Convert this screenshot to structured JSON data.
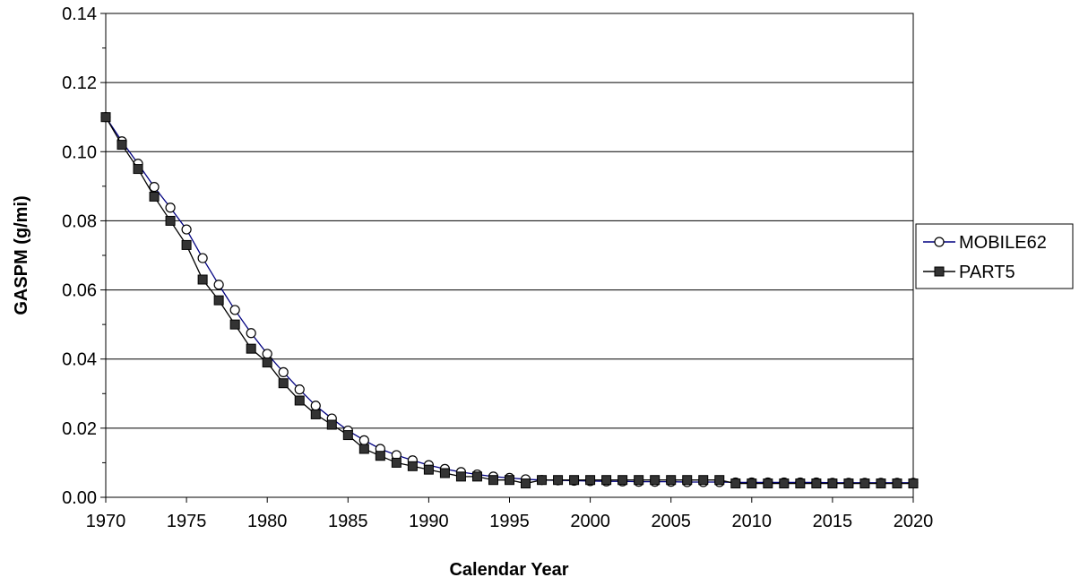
{
  "chart_data": {
    "type": "line",
    "title": "",
    "xlabel": "Calendar Year",
    "ylabel": "GASPM (g/mi)",
    "xlim": [
      1970,
      2020
    ],
    "ylim": [
      0,
      0.14
    ],
    "xticks": [
      "1970",
      "1975",
      "1980",
      "1985",
      "1990",
      "1995",
      "2000",
      "2005",
      "2010",
      "2015",
      "2020"
    ],
    "yticks": [
      "0.00",
      "0.02",
      "0.04",
      "0.06",
      "0.08",
      "0.10",
      "0.12",
      "0.14"
    ],
    "grid": "horizontal major",
    "legend_position": "right",
    "x": [
      1970,
      1971,
      1972,
      1973,
      1974,
      1975,
      1976,
      1977,
      1978,
      1979,
      1980,
      1981,
      1982,
      1983,
      1984,
      1985,
      1986,
      1987,
      1988,
      1989,
      1990,
      1991,
      1992,
      1993,
      1994,
      1995,
      1996,
      1997,
      1998,
      1999,
      2000,
      2001,
      2002,
      2003,
      2004,
      2005,
      2006,
      2007,
      2008,
      2009,
      2010,
      2011,
      2012,
      2013,
      2014,
      2015,
      2016,
      2017,
      2018,
      2019,
      2020
    ],
    "series": [
      {
        "name": "MOBILE62",
        "marker": "open-circle",
        "line_color": "#000080",
        "values": [
          0.11,
          0.103,
          0.0965,
          0.0898,
          0.0838,
          0.0775,
          0.0692,
          0.0615,
          0.0542,
          0.0475,
          0.0415,
          0.0362,
          0.0312,
          0.0265,
          0.0228,
          0.0193,
          0.0165,
          0.014,
          0.0122,
          0.0107,
          0.0093,
          0.0082,
          0.0073,
          0.0066,
          0.006,
          0.0056,
          0.0052,
          0.005,
          0.0049,
          0.0048,
          0.0047,
          0.0046,
          0.0046,
          0.0045,
          0.0045,
          0.0045,
          0.0044,
          0.0044,
          0.0044,
          0.0043,
          0.0043,
          0.0043,
          0.0043,
          0.0043,
          0.0043,
          0.0042,
          0.0042,
          0.0042,
          0.0042,
          0.0042,
          0.0042
        ]
      },
      {
        "name": "PART5",
        "marker": "filled-square",
        "line_color": "#000000",
        "values": [
          0.11,
          0.102,
          0.095,
          0.087,
          0.08,
          0.073,
          0.063,
          0.057,
          0.05,
          0.043,
          0.039,
          0.033,
          0.028,
          0.024,
          0.021,
          0.018,
          0.014,
          0.012,
          0.01,
          0.009,
          0.008,
          0.007,
          0.006,
          0.006,
          0.005,
          0.005,
          0.004,
          0.005,
          0.005,
          0.005,
          0.005,
          0.005,
          0.005,
          0.005,
          0.005,
          0.005,
          0.005,
          0.005,
          0.005,
          0.004,
          0.004,
          0.004,
          0.004,
          0.004,
          0.004,
          0.004,
          0.004,
          0.004,
          0.004,
          0.004,
          0.004
        ]
      }
    ]
  }
}
